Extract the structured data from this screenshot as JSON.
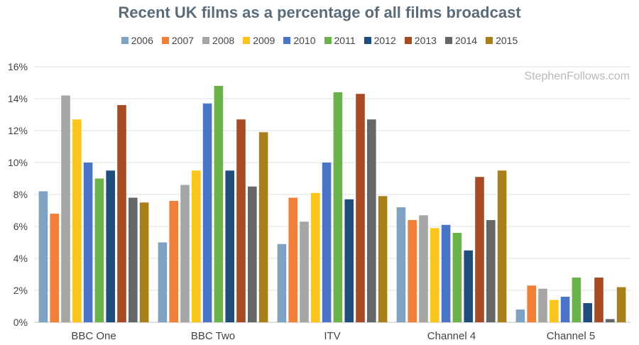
{
  "chart_data": {
    "type": "bar",
    "title": "Recent UK films as a percentage of all films broadcast",
    "xlabel": "",
    "ylabel": "",
    "ylim": [
      0,
      16
    ],
    "yticks": [
      "0%",
      "2%",
      "4%",
      "6%",
      "8%",
      "10%",
      "12%",
      "14%",
      "16%"
    ],
    "grid": true,
    "legend_position": "top",
    "categories": [
      "BBC One",
      "BBC Two",
      "ITV",
      "Channel 4",
      "Channel 5"
    ],
    "series": [
      {
        "name": "2006",
        "color": "#7fa2c2",
        "values": [
          8.2,
          5.0,
          4.9,
          7.2,
          0.8
        ]
      },
      {
        "name": "2007",
        "color": "#f07f3a",
        "values": [
          6.8,
          7.6,
          7.8,
          6.4,
          2.3
        ]
      },
      {
        "name": "2008",
        "color": "#a6a6a6",
        "values": [
          14.2,
          8.6,
          6.3,
          6.7,
          2.1
        ]
      },
      {
        "name": "2009",
        "color": "#fcc51e",
        "values": [
          12.7,
          9.5,
          8.1,
          5.9,
          1.4
        ]
      },
      {
        "name": "2010",
        "color": "#4a74c5",
        "values": [
          10.0,
          13.7,
          10.0,
          6.1,
          1.6
        ]
      },
      {
        "name": "2011",
        "color": "#6cb24a",
        "values": [
          9.0,
          14.8,
          14.4,
          5.6,
          2.8
        ]
      },
      {
        "name": "2012",
        "color": "#1f4e7e",
        "values": [
          9.5,
          9.5,
          7.7,
          4.5,
          1.2
        ]
      },
      {
        "name": "2013",
        "color": "#a84b25",
        "values": [
          13.6,
          12.7,
          14.3,
          9.1,
          2.8
        ]
      },
      {
        "name": "2014",
        "color": "#666666",
        "values": [
          7.8,
          8.5,
          12.7,
          6.4,
          0.2
        ]
      },
      {
        "name": "2015",
        "color": "#a8801b",
        "values": [
          7.5,
          11.9,
          7.9,
          9.5,
          2.2
        ]
      }
    ]
  },
  "watermark": "StephenFollows.com"
}
